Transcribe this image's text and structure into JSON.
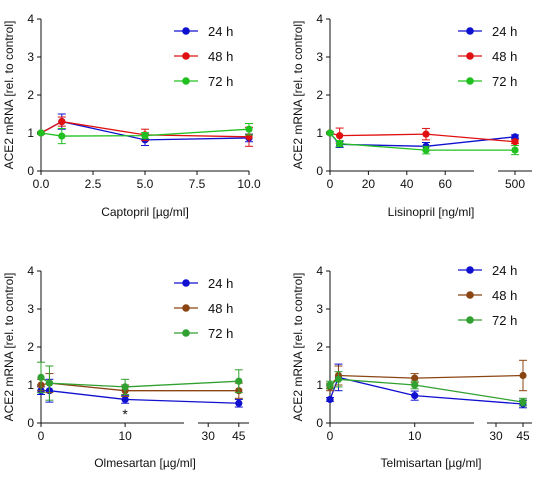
{
  "chart_data": [
    {
      "type": "line",
      "ylabel": "ACE2 mRNA [rel. to control]",
      "xlabel": "Captopril [µg/ml]",
      "ylim": [
        0,
        4
      ],
      "yticks": [
        "0",
        "1",
        "2",
        "3",
        "4"
      ],
      "xticks": [
        "0.0",
        "2.5",
        "5.0",
        "7.5",
        "10.0"
      ],
      "legend": "top-right",
      "series": [
        {
          "name": "24 h",
          "color": "#1010d0",
          "x": [
            0,
            1,
            5,
            10
          ],
          "y": [
            1.0,
            1.3,
            0.82,
            0.87
          ],
          "err": [
            0.03,
            0.2,
            0.15,
            0.1
          ]
        },
        {
          "name": "48 h",
          "color": "#e01010",
          "x": [
            0,
            1,
            5,
            10
          ],
          "y": [
            1.0,
            1.3,
            0.95,
            0.9
          ],
          "err": [
            0.03,
            0.12,
            0.15,
            0.25
          ]
        },
        {
          "name": "72 h",
          "color": "#20c020",
          "x": [
            0,
            1,
            5,
            10
          ],
          "y": [
            1.0,
            0.92,
            0.93,
            1.1
          ],
          "err": [
            0.03,
            0.2,
            0.08,
            0.15
          ]
        }
      ]
    },
    {
      "type": "line",
      "ylabel": "ACE2 mRNA [rel. to control]",
      "xlabel": "Lisinopril [ng/ml]",
      "ylim": [
        0,
        4
      ],
      "yticks": [
        "0",
        "1",
        "2",
        "3",
        "4"
      ],
      "xticks": [
        "0",
        "20",
        "40",
        "60",
        "500"
      ],
      "legend": "top-right",
      "series": [
        {
          "name": "24 h",
          "color": "#1010d0",
          "x": [
            0,
            5,
            50,
            500
          ],
          "y": [
            1.0,
            0.7,
            0.65,
            0.9
          ],
          "err": [
            0.03,
            0.08,
            0.1,
            0.05
          ]
        },
        {
          "name": "48 h",
          "color": "#e01010",
          "x": [
            0,
            5,
            50,
            500
          ],
          "y": [
            1.0,
            0.93,
            0.97,
            0.77
          ],
          "err": [
            0.03,
            0.2,
            0.15,
            0.05
          ]
        },
        {
          "name": "72 h",
          "color": "#20c020",
          "x": [
            0,
            5,
            50,
            500
          ],
          "y": [
            1.0,
            0.72,
            0.55,
            0.55
          ],
          "err": [
            0.03,
            0.08,
            0.1,
            0.12
          ]
        }
      ]
    },
    {
      "type": "line",
      "ylabel": "ACE2 mRNA [rel. to control]",
      "xlabel": "Olmesartan [µg/ml]",
      "ylim": [
        0,
        4
      ],
      "yticks": [
        "0",
        "1",
        "2",
        "3",
        "4"
      ],
      "xticks": [
        "0",
        "10",
        "30",
        "45"
      ],
      "legend": "top-right",
      "annotations": [
        "*"
      ],
      "series": [
        {
          "name": "24 h",
          "color": "#1010d0",
          "x": [
            0,
            1,
            10,
            45
          ],
          "y": [
            0.85,
            0.85,
            0.62,
            0.52
          ],
          "err": [
            0.1,
            0.3,
            0.1,
            0.1
          ]
        },
        {
          "name": "48 h",
          "color": "#8b4513",
          "x": [
            0,
            1,
            10,
            45
          ],
          "y": [
            1.0,
            1.05,
            0.85,
            0.85
          ],
          "err": [
            0.15,
            0.25,
            0.15,
            0.2
          ]
        },
        {
          "name": "72 h",
          "color": "#30a030",
          "x": [
            0,
            1,
            10,
            45
          ],
          "y": [
            1.2,
            1.05,
            0.95,
            1.1
          ],
          "err": [
            0.4,
            0.45,
            0.2,
            0.3
          ]
        }
      ]
    },
    {
      "type": "line",
      "ylabel": "ACE2 mRNA [rel. to control]",
      "xlabel": "Telmisartan [µg/ml]",
      "ylim": [
        0,
        4
      ],
      "yticks": [
        "0",
        "1",
        "2",
        "3",
        "4"
      ],
      "xticks": [
        "0",
        "10",
        "30",
        "45"
      ],
      "legend": "top-right",
      "series": [
        {
          "name": "24 h",
          "color": "#1010d0",
          "x": [
            0,
            1,
            10,
            45
          ],
          "y": [
            0.62,
            1.2,
            0.72,
            0.5
          ],
          "err": [
            0.05,
            0.35,
            0.12,
            0.1
          ]
        },
        {
          "name": "48 h",
          "color": "#8b4513",
          "x": [
            0,
            1,
            10,
            45
          ],
          "y": [
            0.95,
            1.25,
            1.18,
            1.25
          ],
          "err": [
            0.1,
            0.25,
            0.12,
            0.4
          ]
        },
        {
          "name": "72 h",
          "color": "#30a030",
          "x": [
            0,
            1,
            10,
            45
          ],
          "y": [
            1.0,
            1.15,
            1.0,
            0.55
          ],
          "err": [
            0.1,
            0.2,
            0.1,
            0.1
          ]
        }
      ]
    }
  ]
}
